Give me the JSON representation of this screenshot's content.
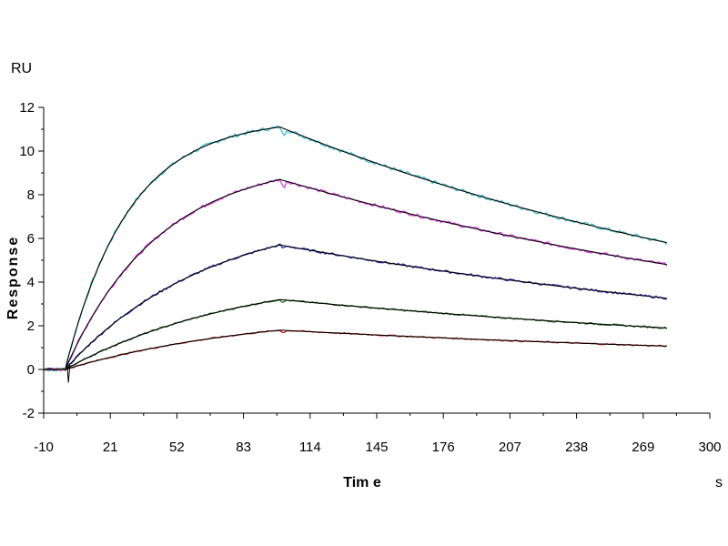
{
  "chart_data": {
    "type": "line",
    "title": "",
    "xlabel": "Tim e",
    "ylabel": "Response",
    "x_unit": "s",
    "y_unit": "RU",
    "xlim": [
      -10,
      300
    ],
    "ylim": [
      -2,
      12
    ],
    "x_ticks": [
      "-10",
      "21",
      "52",
      "83",
      "114",
      "145",
      "176",
      "207",
      "238",
      "269",
      "300"
    ],
    "y_ticks": [
      "-2",
      "0",
      "2",
      "4",
      "6",
      "8",
      "10",
      "12"
    ],
    "grid": false,
    "legend": "none",
    "curve_model": {
      "baseline_end": 0,
      "association_end": 100,
      "dissociation_end": 280
    },
    "series": [
      {
        "color": "#3fc1c9",
        "fit_color": "#000000",
        "association_rate": 0.034,
        "dissociation_rate": 0.0036,
        "values": [
          {
            "x": -10,
            "y": 0.0
          },
          {
            "x": 0,
            "y": -0.05
          },
          {
            "x": 10,
            "y": 3.6
          },
          {
            "x": 21,
            "y": 5.9
          },
          {
            "x": 30,
            "y": 7.4
          },
          {
            "x": 52,
            "y": 9.5
          },
          {
            "x": 70,
            "y": 10.4
          },
          {
            "x": 83,
            "y": 10.8
          },
          {
            "x": 100,
            "y": 11.1
          },
          {
            "x": 114,
            "y": 10.1
          },
          {
            "x": 145,
            "y": 8.9
          },
          {
            "x": 176,
            "y": 7.9
          },
          {
            "x": 207,
            "y": 7.1
          },
          {
            "x": 238,
            "y": 6.4
          },
          {
            "x": 269,
            "y": 5.9
          },
          {
            "x": 280,
            "y": 5.8
          }
        ]
      },
      {
        "color": "#e040e0",
        "fit_color": "#000000",
        "association_rate": 0.023,
        "dissociation_rate": 0.0033,
        "values": [
          {
            "x": -10,
            "y": 0.0
          },
          {
            "x": 0,
            "y": -0.05
          },
          {
            "x": 10,
            "y": 2.1
          },
          {
            "x": 21,
            "y": 3.8
          },
          {
            "x": 52,
            "y": 6.6
          },
          {
            "x": 83,
            "y": 8.2
          },
          {
            "x": 100,
            "y": 8.7
          },
          {
            "x": 114,
            "y": 8.1
          },
          {
            "x": 145,
            "y": 7.2
          },
          {
            "x": 176,
            "y": 6.5
          },
          {
            "x": 207,
            "y": 5.8
          },
          {
            "x": 238,
            "y": 5.3
          },
          {
            "x": 269,
            "y": 4.9
          },
          {
            "x": 280,
            "y": 4.8
          }
        ]
      },
      {
        "color": "#3333bb",
        "fit_color": "#000000",
        "association_rate": 0.015,
        "dissociation_rate": 0.0031,
        "values": [
          {
            "x": -10,
            "y": 0.0
          },
          {
            "x": 0,
            "y": -0.05
          },
          {
            "x": 21,
            "y": 1.8
          },
          {
            "x": 52,
            "y": 3.6
          },
          {
            "x": 83,
            "y": 5.0
          },
          {
            "x": 100,
            "y": 5.7
          },
          {
            "x": 114,
            "y": 5.4
          },
          {
            "x": 145,
            "y": 4.8
          },
          {
            "x": 176,
            "y": 4.3
          },
          {
            "x": 207,
            "y": 3.9
          },
          {
            "x": 238,
            "y": 3.6
          },
          {
            "x": 269,
            "y": 3.3
          },
          {
            "x": 280,
            "y": 3.3
          }
        ]
      },
      {
        "color": "#2a7a2a",
        "fit_color": "#000000",
        "association_rate": 0.012,
        "dissociation_rate": 0.0029,
        "values": [
          {
            "x": -10,
            "y": 0.0
          },
          {
            "x": 0,
            "y": -0.05
          },
          {
            "x": 21,
            "y": 1.0
          },
          {
            "x": 52,
            "y": 2.0
          },
          {
            "x": 83,
            "y": 2.8
          },
          {
            "x": 100,
            "y": 3.2
          },
          {
            "x": 114,
            "y": 2.9
          },
          {
            "x": 145,
            "y": 2.6
          },
          {
            "x": 176,
            "y": 2.3
          },
          {
            "x": 207,
            "y": 2.1
          },
          {
            "x": 238,
            "y": 1.9
          },
          {
            "x": 269,
            "y": 1.8
          },
          {
            "x": 280,
            "y": 1.8
          }
        ]
      },
      {
        "color": "#cc2222",
        "fit_color": "#000000",
        "association_rate": 0.011,
        "dissociation_rate": 0.0029,
        "values": [
          {
            "x": -10,
            "y": 0.0
          },
          {
            "x": 0,
            "y": -0.05
          },
          {
            "x": 21,
            "y": 0.5
          },
          {
            "x": 52,
            "y": 1.1
          },
          {
            "x": 83,
            "y": 1.5
          },
          {
            "x": 100,
            "y": 1.8
          },
          {
            "x": 114,
            "y": 1.7
          },
          {
            "x": 145,
            "y": 1.5
          },
          {
            "x": 176,
            "y": 1.4
          },
          {
            "x": 207,
            "y": 1.3
          },
          {
            "x": 238,
            "y": 1.2
          },
          {
            "x": 269,
            "y": 1.1
          },
          {
            "x": 280,
            "y": 1.05
          }
        ]
      }
    ]
  }
}
